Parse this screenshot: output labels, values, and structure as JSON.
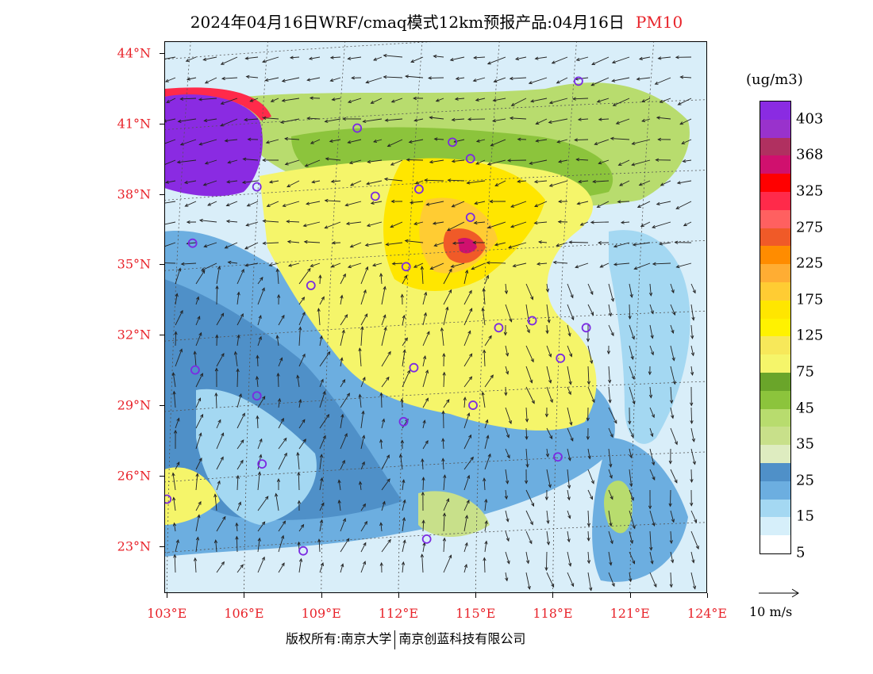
{
  "title": {
    "main": "2024年04月16日WRF/cmaq模式12km预报产品:04月16日",
    "pollutant": "PM10"
  },
  "map": {
    "lat_range": [
      21,
      44.5
    ],
    "lon_range": [
      102.9,
      124
    ],
    "lat_labels": [
      {
        "lat": 44,
        "text": "44°N"
      },
      {
        "lat": 41,
        "text": "41°N"
      },
      {
        "lat": 38,
        "text": "38°N"
      },
      {
        "lat": 35,
        "text": "35°N"
      },
      {
        "lat": 32,
        "text": "32°N"
      },
      {
        "lat": 29,
        "text": "29°N"
      },
      {
        "lat": 26,
        "text": "26°N"
      },
      {
        "lat": 23,
        "text": "23°N"
      }
    ],
    "lon_labels": [
      {
        "lon": 103,
        "text": "103°E"
      },
      {
        "lon": 106,
        "text": "106°E"
      },
      {
        "lon": 109,
        "text": "109°E"
      },
      {
        "lon": 112,
        "text": "112°E"
      },
      {
        "lon": 115,
        "text": "115°E"
      },
      {
        "lon": 118,
        "text": "118°E"
      },
      {
        "lon": 121,
        "text": "121°E"
      },
      {
        "lon": 124,
        "text": "124°E"
      }
    ],
    "cities": [
      {
        "lon": 119.0,
        "lat": 42.8
      },
      {
        "lon": 110.4,
        "lat": 40.8
      },
      {
        "lon": 114.1,
        "lat": 40.2
      },
      {
        "lon": 114.8,
        "lat": 39.5
      },
      {
        "lon": 106.5,
        "lat": 38.3
      },
      {
        "lon": 111.1,
        "lat": 37.9
      },
      {
        "lon": 112.8,
        "lat": 38.2
      },
      {
        "lon": 114.8,
        "lat": 37.0
      },
      {
        "lon": 104.0,
        "lat": 35.9
      },
      {
        "lon": 112.3,
        "lat": 34.9
      },
      {
        "lon": 108.6,
        "lat": 34.1
      },
      {
        "lon": 115.9,
        "lat": 32.3
      },
      {
        "lon": 117.2,
        "lat": 32.6
      },
      {
        "lon": 119.3,
        "lat": 32.3
      },
      {
        "lon": 118.3,
        "lat": 31.0
      },
      {
        "lon": 104.1,
        "lat": 30.5
      },
      {
        "lon": 112.6,
        "lat": 30.6
      },
      {
        "lon": 106.5,
        "lat": 29.4
      },
      {
        "lon": 112.2,
        "lat": 28.3
      },
      {
        "lon": 114.9,
        "lat": 29.0
      },
      {
        "lon": 118.2,
        "lat": 26.8
      },
      {
        "lon": 106.7,
        "lat": 26.5
      },
      {
        "lon": 103.0,
        "lat": 25.0
      },
      {
        "lon": 113.1,
        "lat": 23.3
      },
      {
        "lon": 108.3,
        "lat": 22.8
      }
    ]
  },
  "legend": {
    "unit": "(ug/m3)",
    "colors": [
      "#8a2be2",
      "#9932cc",
      "#b03060",
      "#d0106e",
      "#ff0000",
      "#ff2a4a",
      "#ff6060",
      "#f05a28",
      "#ff8c00",
      "#ffad33",
      "#ffcc33",
      "#ffe600",
      "#fff200",
      "#f7e85a",
      "#f5f56a",
      "#6aa52a",
      "#8cc43c",
      "#b8dc6e",
      "#c8e08a",
      "#deecc0",
      "#4f90c8",
      "#6caee0",
      "#a4d8f2",
      "#d6effa",
      "#ffffff"
    ],
    "labels": [
      {
        "index": 1,
        "text": "403"
      },
      {
        "index": 3,
        "text": "368"
      },
      {
        "index": 5,
        "text": "325"
      },
      {
        "index": 7,
        "text": "275"
      },
      {
        "index": 9,
        "text": "225"
      },
      {
        "index": 11,
        "text": "175"
      },
      {
        "index": 13,
        "text": "125"
      },
      {
        "index": 15,
        "text": "75"
      },
      {
        "index": 17,
        "text": "45"
      },
      {
        "index": 19,
        "text": "35"
      },
      {
        "index": 21,
        "text": "25"
      },
      {
        "index": 23,
        "text": "15"
      },
      {
        "index": 25,
        "text": "5"
      }
    ]
  },
  "wind_reference": {
    "label": "10 m/s"
  },
  "footer": {
    "copyright_left": "版权所有:南京大学",
    "copyright_right": "南京创蓝科技有限公司"
  }
}
